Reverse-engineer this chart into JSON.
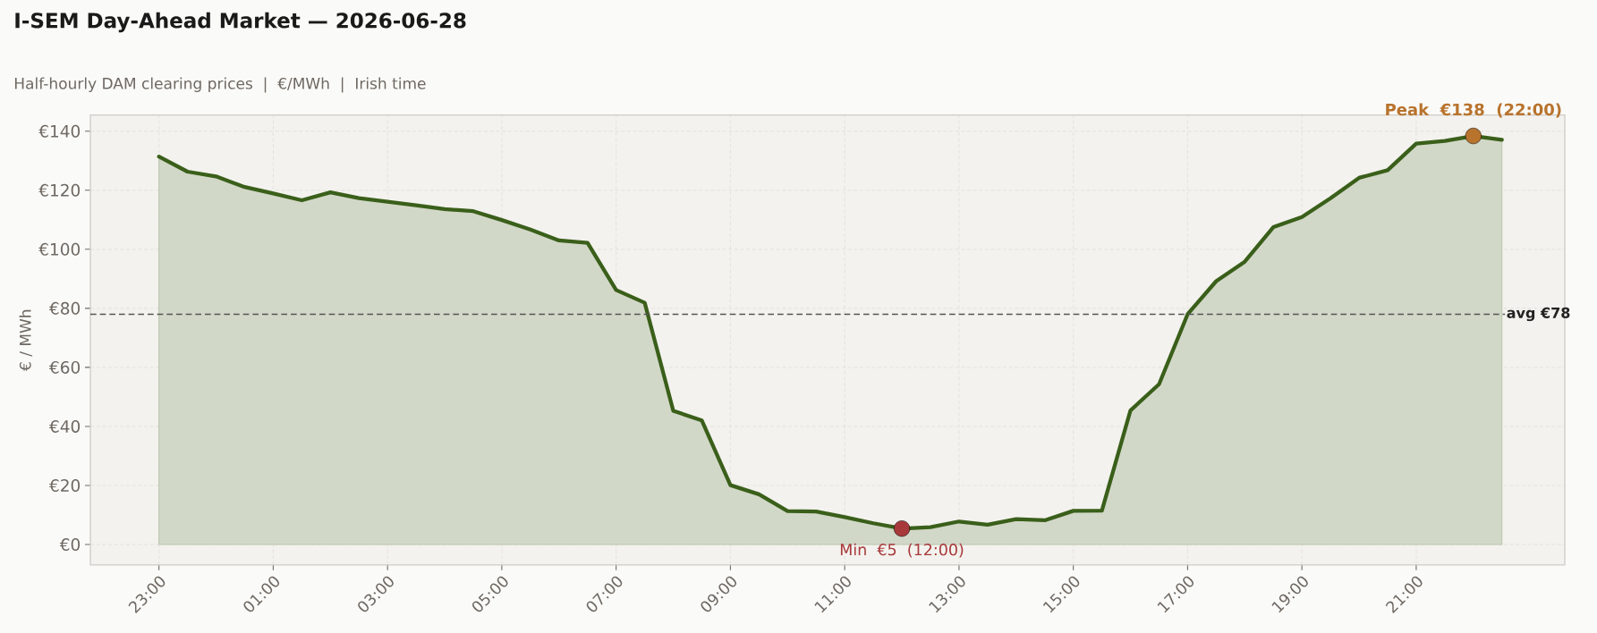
{
  "chart_data": {
    "type": "area",
    "title": "I-SEM Day-Ahead Market — 2026-06-28",
    "subtitle": "Half-hourly DAM clearing prices  |  €/MWh  |  Irish time",
    "ylabel": "€ / MWh",
    "x": [
      "2026-06-27T23:00",
      "2026-06-27T23:30",
      "2026-06-28T00:00",
      "2026-06-28T00:30",
      "2026-06-28T01:00",
      "2026-06-28T01:30",
      "2026-06-28T02:00",
      "2026-06-28T02:30",
      "2026-06-28T03:00",
      "2026-06-28T03:30",
      "2026-06-28T04:00",
      "2026-06-28T04:30",
      "2026-06-28T05:00",
      "2026-06-28T05:30",
      "2026-06-28T06:00",
      "2026-06-28T06:30",
      "2026-06-28T07:00",
      "2026-06-28T07:30",
      "2026-06-28T08:00",
      "2026-06-28T08:30",
      "2026-06-28T09:00",
      "2026-06-28T09:30",
      "2026-06-28T10:00",
      "2026-06-28T10:30",
      "2026-06-28T11:00",
      "2026-06-28T11:30",
      "2026-06-28T12:00",
      "2026-06-28T12:30",
      "2026-06-28T13:00",
      "2026-06-28T13:30",
      "2026-06-28T14:00",
      "2026-06-28T14:30",
      "2026-06-28T15:00",
      "2026-06-28T15:30",
      "2026-06-28T16:00",
      "2026-06-28T16:30",
      "2026-06-28T17:00",
      "2026-06-28T17:30",
      "2026-06-28T18:00",
      "2026-06-28T18:30",
      "2026-06-28T19:00",
      "2026-06-28T19:30",
      "2026-06-28T20:00",
      "2026-06-28T20:30",
      "2026-06-28T21:00",
      "2026-06-28T21:30",
      "2026-06-28T22:00",
      "2026-06-28T22:30"
    ],
    "series": [
      {
        "color": "#3a5f1a",
        "values": [
          131.4,
          126.3,
          124.7,
          121.1,
          118.9,
          116.6,
          119.3,
          117.3,
          116.1,
          114.9,
          113.6,
          112.9,
          109.9,
          106.7,
          103.0,
          102.2,
          86.2,
          81.9,
          45.3,
          42.0,
          20.1,
          17.0,
          11.3,
          11.2,
          9.3,
          7.2,
          5.4,
          5.9,
          7.8,
          6.7,
          8.6,
          8.2,
          11.4,
          11.5,
          45.4,
          54.3,
          78.0,
          89.2,
          95.8,
          107.5,
          110.9,
          117.3,
          124.2,
          126.8,
          135.8,
          136.7,
          138.4,
          137.1
        ]
      },
      {
        "type": "scatter",
        "x": [
          "2026-06-28T12:00"
        ],
        "values": [
          5.4
        ],
        "color": "#a8393b",
        "marker": "circle"
      },
      {
        "type": "scatter",
        "x": [
          "2026-06-28T22:00"
        ],
        "values": [
          138.4
        ],
        "color": "#b8732d",
        "marker": "circle"
      }
    ],
    "xlim": [
      "2026-06-27T21:48",
      "2026-06-28T23:36"
    ],
    "ylim": [
      -6.9,
      145.5
    ],
    "xticks": [
      {
        "value": "2026-06-27T23:00",
        "label": "23:00"
      },
      {
        "value": "2026-06-28T01:00",
        "label": "01:00"
      },
      {
        "value": "2026-06-28T03:00",
        "label": "03:00"
      },
      {
        "value": "2026-06-28T05:00",
        "label": "05:00"
      },
      {
        "value": "2026-06-28T07:00",
        "label": "07:00"
      },
      {
        "value": "2026-06-28T09:00",
        "label": "09:00"
      },
      {
        "value": "2026-06-28T11:00",
        "label": "11:00"
      },
      {
        "value": "2026-06-28T13:00",
        "label": "13:00"
      },
      {
        "value": "2026-06-28T15:00",
        "label": "15:00"
      },
      {
        "value": "2026-06-28T17:00",
        "label": "17:00"
      },
      {
        "value": "2026-06-28T19:00",
        "label": "19:00"
      },
      {
        "value": "2026-06-28T21:00",
        "label": "21:00"
      }
    ],
    "yticks": [
      {
        "value": 0,
        "label": "€0"
      },
      {
        "value": 20,
        "label": "€20"
      },
      {
        "value": 40,
        "label": "€40"
      },
      {
        "value": 60,
        "label": "€60"
      },
      {
        "value": 80,
        "label": "€80"
      },
      {
        "value": 100,
        "label": "€100"
      },
      {
        "value": 120,
        "label": "€120"
      },
      {
        "value": 140,
        "label": "€140"
      }
    ],
    "grid": true,
    "ref_lines": [
      {
        "axis": "y",
        "value": 78,
        "label": "avg €78",
        "color": "#555555",
        "line_style": "dashed"
      }
    ],
    "annotations": [
      {
        "text": "Peak  €138  (22:00)",
        "x": "2026-06-28T22:00",
        "y": 138.4
      },
      {
        "text": "Min  €5  (12:00)",
        "x": "2026-06-28T12:00",
        "y": 5.4
      }
    ]
  }
}
